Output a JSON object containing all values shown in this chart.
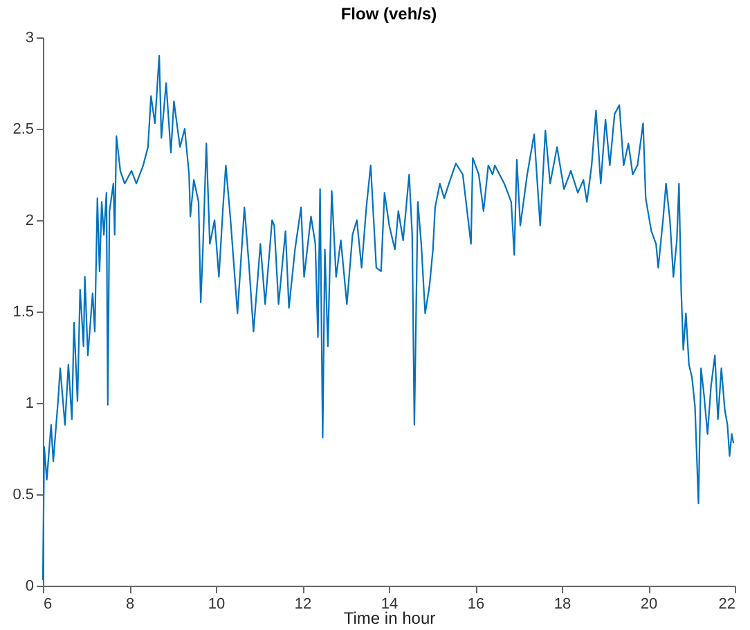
{
  "chart_data": {
    "type": "line",
    "title": "Flow (veh/s)",
    "xlabel": "Time in hour",
    "xlim": [
      6,
      22
    ],
    "xticks": [
      6,
      8,
      10,
      12,
      14,
      16,
      18,
      20,
      22
    ],
    "ylim": [
      0,
      3
    ],
    "yticks": [
      0,
      0.5,
      1,
      1.5,
      2,
      2.5,
      3
    ],
    "grid": false,
    "marker": "none",
    "line_style": "solid",
    "series": [
      {
        "color": "#0072bd",
        "x": [
          6.0,
          6.03,
          6.09,
          6.19,
          6.24,
          6.35,
          6.4,
          6.51,
          6.59,
          6.67,
          6.72,
          6.8,
          6.86,
          6.94,
          6.97,
          7.04,
          7.15,
          7.2,
          7.26,
          7.31,
          7.36,
          7.41,
          7.47,
          7.5,
          7.54,
          7.63,
          7.66,
          7.7,
          7.79,
          7.89,
          8.05,
          8.16,
          8.32,
          8.43,
          8.5,
          8.59,
          8.69,
          8.74,
          8.85,
          8.96,
          9.03,
          9.17,
          9.28,
          9.38,
          9.41,
          9.49,
          9.6,
          9.65,
          9.7,
          9.78,
          9.86,
          9.97,
          10.07,
          10.16,
          10.23,
          10.34,
          10.5,
          10.66,
          10.77,
          10.87,
          11.03,
          11.14,
          11.3,
          11.35,
          11.45,
          11.61,
          11.69,
          11.83,
          11.97,
          12.04,
          12.2,
          12.3,
          12.36,
          12.41,
          12.47,
          12.52,
          12.59,
          12.68,
          12.78,
          12.89,
          13.03,
          13.16,
          13.26,
          13.37,
          13.48,
          13.58,
          13.71,
          13.82,
          13.9,
          14.01,
          14.14,
          14.22,
          14.33,
          14.47,
          14.54,
          14.59,
          14.67,
          14.75,
          14.84,
          14.94,
          15.02,
          15.07,
          15.18,
          15.28,
          15.39,
          15.55,
          15.71,
          15.9,
          15.94,
          16.08,
          16.19,
          16.3,
          16.4,
          16.45,
          16.67,
          16.83,
          16.9,
          16.96,
          17.04,
          17.2,
          17.36,
          17.5,
          17.62,
          17.73,
          17.89,
          18.05,
          18.21,
          18.37,
          18.5,
          18.58,
          18.69,
          18.79,
          18.9,
          19.01,
          19.11,
          19.22,
          19.33,
          19.43,
          19.54,
          19.64,
          19.75,
          19.88,
          19.94,
          20.07,
          20.18,
          20.23,
          20.34,
          20.41,
          20.5,
          20.58,
          20.66,
          20.71,
          20.76,
          20.81,
          20.87,
          20.94,
          21.01,
          21.08,
          21.16,
          21.22,
          21.29,
          21.37,
          21.45,
          21.54,
          21.61,
          21.69,
          21.77,
          21.83,
          21.88,
          21.93,
          21.97
        ],
        "values": [
          0.03,
          0.76,
          0.58,
          0.88,
          0.68,
          1.01,
          1.19,
          0.88,
          1.21,
          0.91,
          1.44,
          1.01,
          1.62,
          1.31,
          1.69,
          1.26,
          1.6,
          1.39,
          2.12,
          1.72,
          2.1,
          1.92,
          2.15,
          0.99,
          2.05,
          2.2,
          1.92,
          2.46,
          2.27,
          2.2,
          2.27,
          2.2,
          2.3,
          2.4,
          2.68,
          2.53,
          2.9,
          2.45,
          2.75,
          2.37,
          2.65,
          2.4,
          2.5,
          2.25,
          2.02,
          2.22,
          2.1,
          1.55,
          1.84,
          2.42,
          1.87,
          2.0,
          1.69,
          2.05,
          2.3,
          2.0,
          1.49,
          2.07,
          1.74,
          1.39,
          1.87,
          1.54,
          2.0,
          1.97,
          1.54,
          1.94,
          1.52,
          1.84,
          2.07,
          1.69,
          2.02,
          1.87,
          1.36,
          2.17,
          0.81,
          1.84,
          1.31,
          2.16,
          1.69,
          1.89,
          1.54,
          1.92,
          2.0,
          1.74,
          2.07,
          2.3,
          1.74,
          1.72,
          2.15,
          1.97,
          1.84,
          2.05,
          1.89,
          2.25,
          1.92,
          0.88,
          2.1,
          1.87,
          1.49,
          1.64,
          1.84,
          2.07,
          2.2,
          2.12,
          2.2,
          2.31,
          2.25,
          1.87,
          2.34,
          2.25,
          2.05,
          2.3,
          2.25,
          2.3,
          2.2,
          2.1,
          1.81,
          2.33,
          1.97,
          2.25,
          2.47,
          1.97,
          2.49,
          2.2,
          2.4,
          2.17,
          2.27,
          2.15,
          2.22,
          2.1,
          2.3,
          2.6,
          2.2,
          2.55,
          2.3,
          2.58,
          2.63,
          2.3,
          2.42,
          2.25,
          2.3,
          2.53,
          2.12,
          1.94,
          1.87,
          1.74,
          2.0,
          2.2,
          2.0,
          1.69,
          1.89,
          2.2,
          1.62,
          1.29,
          1.49,
          1.21,
          1.14,
          0.98,
          0.45,
          1.19,
          1.04,
          0.83,
          1.09,
          1.26,
          0.91,
          1.19,
          0.96,
          0.88,
          0.71,
          0.83,
          0.78
        ]
      }
    ]
  }
}
